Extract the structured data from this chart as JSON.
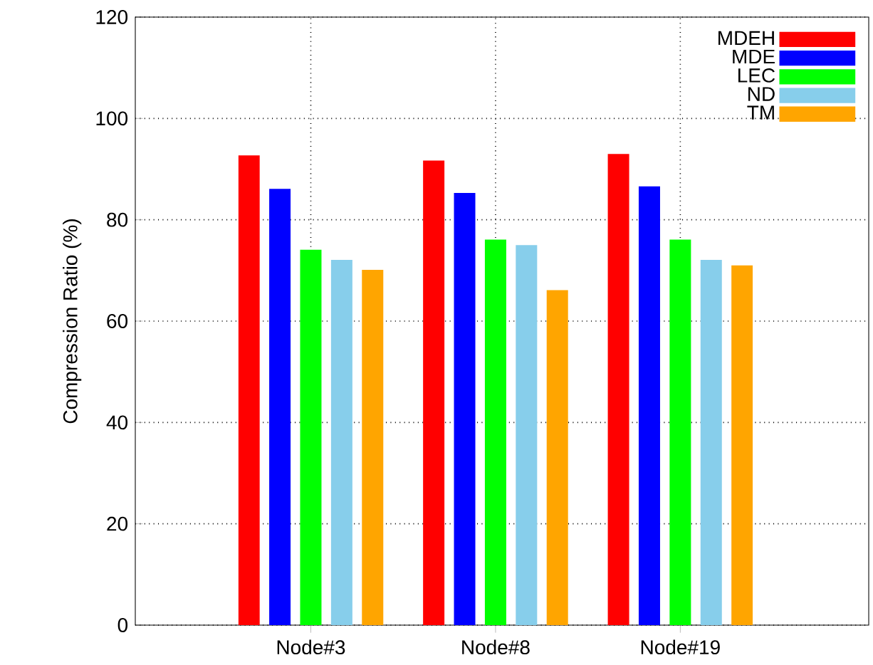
{
  "chart_data": {
    "type": "bar",
    "ylabel": "Compression Ratio (%)",
    "categories": [
      "Node#3",
      "Node#8",
      "Node#19"
    ],
    "series": [
      {
        "name": "MDEH",
        "color": "#ff0000",
        "values": [
          92.7,
          91.7,
          93.0
        ]
      },
      {
        "name": "MDE",
        "color": "#0000ff",
        "values": [
          86.1,
          85.3,
          86.6
        ]
      },
      {
        "name": "LEC",
        "color": "#00ff00",
        "values": [
          74.1,
          76.1,
          76.1
        ]
      },
      {
        "name": "ND",
        "color": "#87ceeb",
        "values": [
          72.1,
          75.0,
          72.1
        ]
      },
      {
        "name": "TM",
        "color": "#ffa500",
        "values": [
          70.1,
          66.1,
          71.0
        ]
      }
    ],
    "ylim": [
      0,
      120
    ],
    "yticks": [
      0,
      20,
      40,
      60,
      80,
      100,
      120
    ],
    "grid": true,
    "legend": "top right"
  }
}
